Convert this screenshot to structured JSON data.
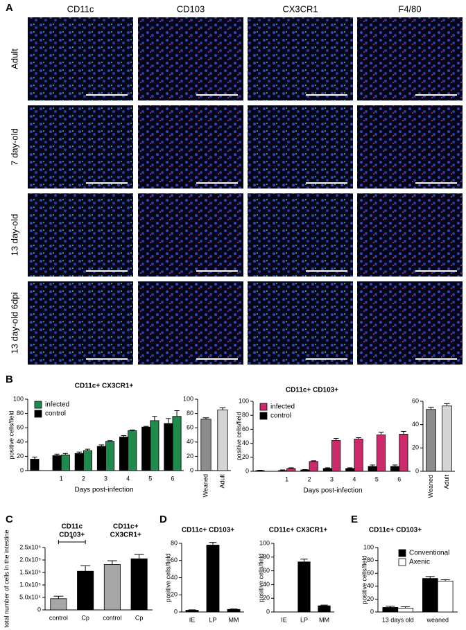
{
  "panel_labels": [
    "A",
    "B",
    "C",
    "D",
    "E"
  ],
  "microscopy": {
    "columns": [
      "CD11c",
      "CD103",
      "CX3CR1",
      "F4/80"
    ],
    "rows": [
      "Adult",
      "7 day-old",
      "13 day-old",
      "13 day-old 6dpi"
    ]
  },
  "chart_data": [
    {
      "type": "bar",
      "title": "CD11c+ CX3CR1+",
      "y_label": "positive cells/field",
      "x_label": "Days post-infection",
      "categories": [
        null,
        "1",
        "2",
        "3",
        "4",
        "5",
        "6"
      ],
      "series": [
        {
          "name": "infected",
          "color": "#1e8a4c",
          "values": [
            null,
            22,
            28,
            41,
            56,
            70,
            76
          ],
          "errors": [
            null,
            2,
            2,
            1,
            1,
            6,
            8
          ]
        },
        {
          "name": "control",
          "color": "#000000",
          "values": [
            16,
            21,
            24,
            34,
            47,
            61,
            66
          ],
          "errors": [
            3,
            2,
            2,
            2,
            2,
            1,
            7
          ]
        }
      ],
      "ylim": [
        0,
        100
      ],
      "yticks": [
        0,
        20,
        40,
        60,
        80,
        100
      ],
      "legend": "upper left"
    },
    {
      "type": "bar",
      "categories": [
        "Weaned",
        "Adult"
      ],
      "values": [
        72,
        85
      ],
      "errors": [
        2,
        3
      ],
      "colors": [
        "#8c8c8c",
        "#d4d4d4"
      ],
      "ylim": [
        0,
        100
      ],
      "yticks": [
        0,
        20,
        40,
        60,
        80,
        100
      ]
    },
    {
      "type": "bar",
      "title": "CD11c+ CD103+",
      "y_label": "positive cells/field",
      "x_label": "Days post-infection",
      "categories": [
        null,
        "1",
        "2",
        "3",
        "4",
        "5",
        "6"
      ],
      "series": [
        {
          "name": "infected",
          "color": "#cc2a6b",
          "values": [
            null,
            4,
            14,
            44,
            46,
            52,
            53
          ],
          "errors": [
            null,
            1,
            1,
            3,
            2,
            4,
            4
          ]
        },
        {
          "name": "control",
          "color": "#000000",
          "values": [
            1,
            1,
            2,
            4,
            4,
            7,
            7
          ],
          "errors": [
            0.5,
            1,
            0.5,
            1,
            1,
            2,
            2
          ]
        }
      ],
      "ylim": [
        0,
        100
      ],
      "yticks": [
        0,
        20,
        40,
        60,
        80,
        100
      ],
      "legend": "upper left"
    },
    {
      "type": "bar",
      "categories": [
        "Weaned",
        "Adult"
      ],
      "values": [
        53,
        56
      ],
      "errors": [
        2,
        2
      ],
      "colors": [
        "#8c8c8c",
        "#d4d4d4"
      ],
      "ylim": [
        0,
        60
      ],
      "yticks": [
        0,
        20,
        40,
        60
      ]
    },
    {
      "type": "bar",
      "y_label": "total number of cells in the intestine",
      "group_titles": [
        [
          "CD11c",
          "CD103+"
        ],
        [
          "CD11c+",
          "CX3CR1+"
        ]
      ],
      "categories": [
        "control",
        "Cp",
        "control",
        "Cp"
      ],
      "values": [
        45000,
        155000,
        182000,
        205000
      ],
      "errors": [
        10000,
        22000,
        15000,
        17000
      ],
      "colors": [
        "#a6a6a6",
        "#000000",
        "#a6a6a6",
        "#000000"
      ],
      "annotation": "*",
      "ylim": [
        0,
        250000
      ],
      "yticks": [
        0,
        {
          "value": 50000,
          "label": "5.0x10⁴"
        },
        {
          "value": 100000,
          "label": "1.0x10⁵"
        },
        {
          "value": 150000,
          "label": "1.5x10⁵"
        },
        {
          "value": 200000,
          "label": "2.0x10⁵"
        },
        {
          "value": 250000,
          "label": "2.5x10⁵"
        }
      ]
    },
    {
      "type": "bar",
      "title": "CD11c+ CD103+",
      "y_label": "positive cells/field",
      "categories": [
        "IE",
        "LP",
        "MM"
      ],
      "values": [
        2,
        78,
        3
      ],
      "errors": [
        0.5,
        3,
        0.5
      ],
      "color": "#000000",
      "ylim": [
        0,
        80
      ],
      "yticks": [
        0,
        20,
        40,
        60,
        80
      ]
    },
    {
      "type": "bar",
      "title": "CD11c+ CX3CR1+",
      "y_label": "positive cells/field",
      "categories": [
        "IE",
        "LP",
        "MM"
      ],
      "values": [
        0,
        73,
        9
      ],
      "errors": [
        0,
        4,
        1
      ],
      "color": "#000000",
      "ylim": [
        0,
        100
      ],
      "yticks": [
        0,
        20,
        40,
        60,
        80,
        100
      ]
    },
    {
      "type": "bar",
      "title": "CD11c+ CD103+",
      "y_label": "positive cells/field",
      "categories": [
        "13 days old",
        "weaned"
      ],
      "series": [
        {
          "name": "Conventional",
          "color": "#000000",
          "values": [
            7,
            52
          ],
          "errors": [
            2,
            3
          ]
        },
        {
          "name": "Axenic",
          "color": "#ffffff",
          "values": [
            6,
            48
          ],
          "errors": [
            2,
            2
          ]
        }
      ],
      "ylim": [
        0,
        100
      ],
      "yticks": [
        0,
        20,
        40,
        60,
        80,
        100
      ],
      "legend": "upper right"
    }
  ]
}
